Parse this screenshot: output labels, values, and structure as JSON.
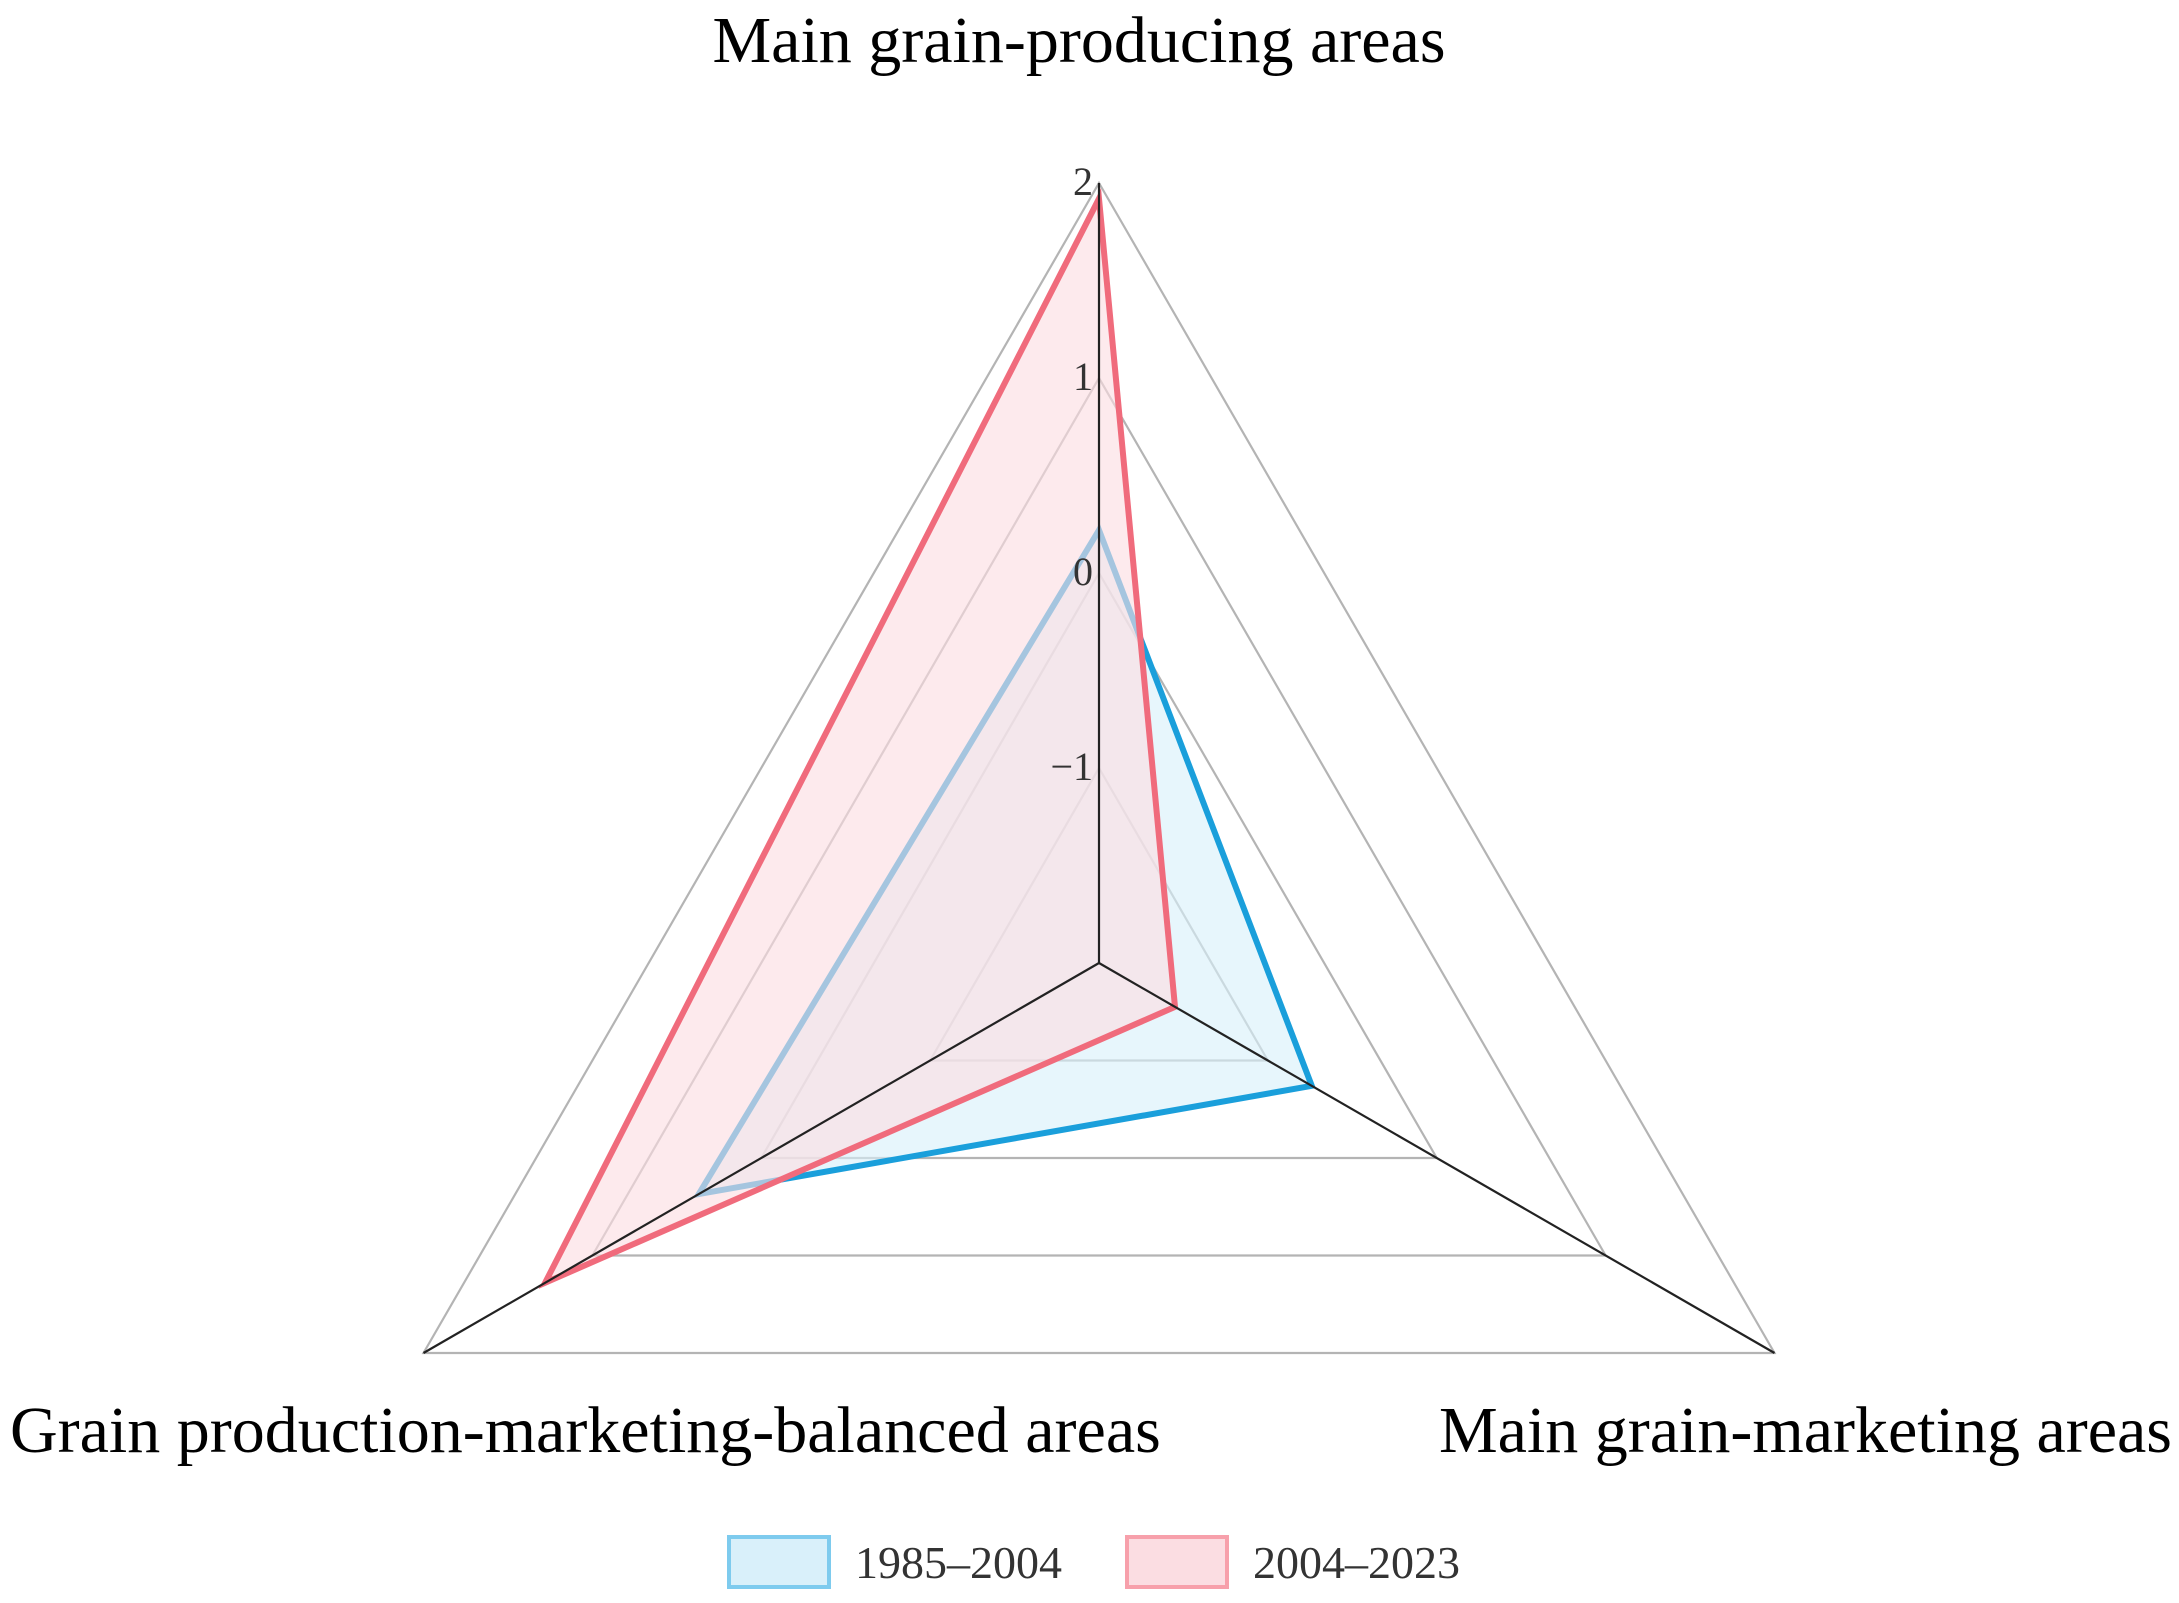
{
  "chart_data": {
    "type": "radar",
    "title": "",
    "axes": [
      "Main grain-producing areas",
      "Main grain-marketing areas",
      "Grain production-marketing-balanced areas"
    ],
    "rlim": [
      -2,
      2
    ],
    "rticks": [
      "2",
      "1",
      "0",
      "−1"
    ],
    "grid": true,
    "legend_position": "bottom-center",
    "series": [
      {
        "name": "1985–2004",
        "values": [
          0.22,
          -0.74,
          0.37
        ],
        "color": "#1a9fdb",
        "fill": "#d9f0fa"
      },
      {
        "name": "2004–2023",
        "values": [
          1.92,
          -1.55,
          1.28
        ],
        "color": "#f06b7c",
        "fill": "#fbdde2"
      }
    ]
  }
}
